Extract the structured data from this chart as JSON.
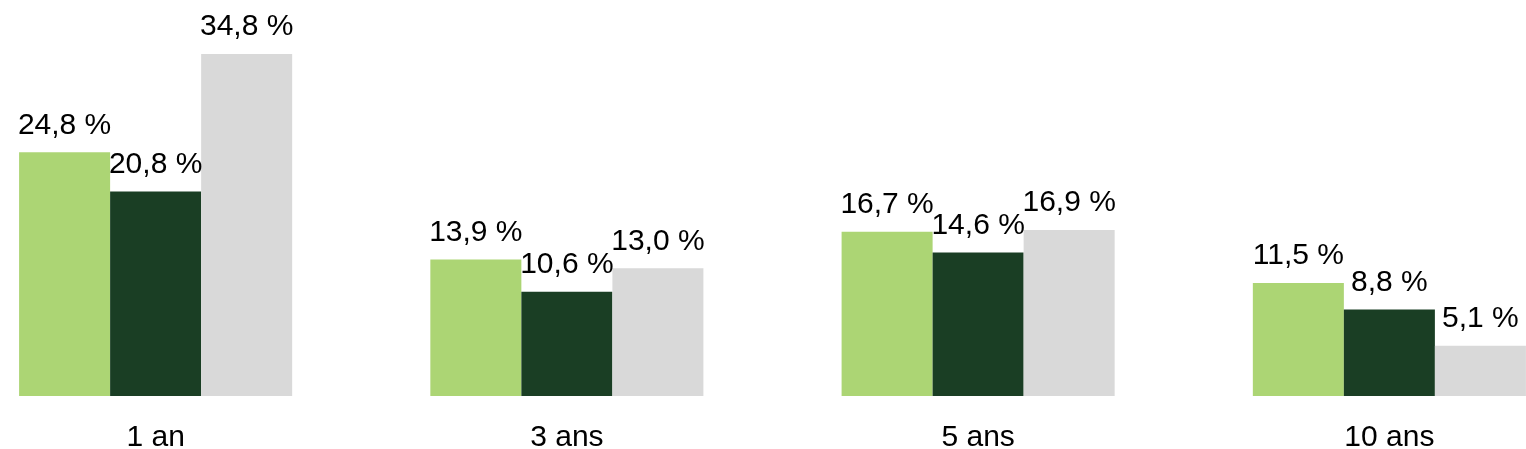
{
  "chart_data": {
    "type": "bar",
    "categories": [
      "1 an",
      "3 ans",
      "5 ans",
      "10 ans"
    ],
    "series": [
      {
        "color": "#acd574",
        "values": [
          24.8,
          13.9,
          16.7,
          11.5
        ],
        "value_labels": [
          "24,8 %",
          "13,9 %",
          "16,7 %",
          "11,5 %"
        ]
      },
      {
        "color": "#1a3e24",
        "values": [
          20.8,
          10.6,
          14.6,
          8.8
        ],
        "value_labels": [
          "20,8 %",
          "10,6 %",
          "14,6 %",
          "8,8 %"
        ]
      },
      {
        "color": "#d9d9d9",
        "values": [
          34.8,
          13.0,
          16.9,
          5.1
        ],
        "value_labels": [
          "34,8 %",
          "13,0 %",
          "16,9 %",
          "5,1 %"
        ]
      }
    ]
  }
}
